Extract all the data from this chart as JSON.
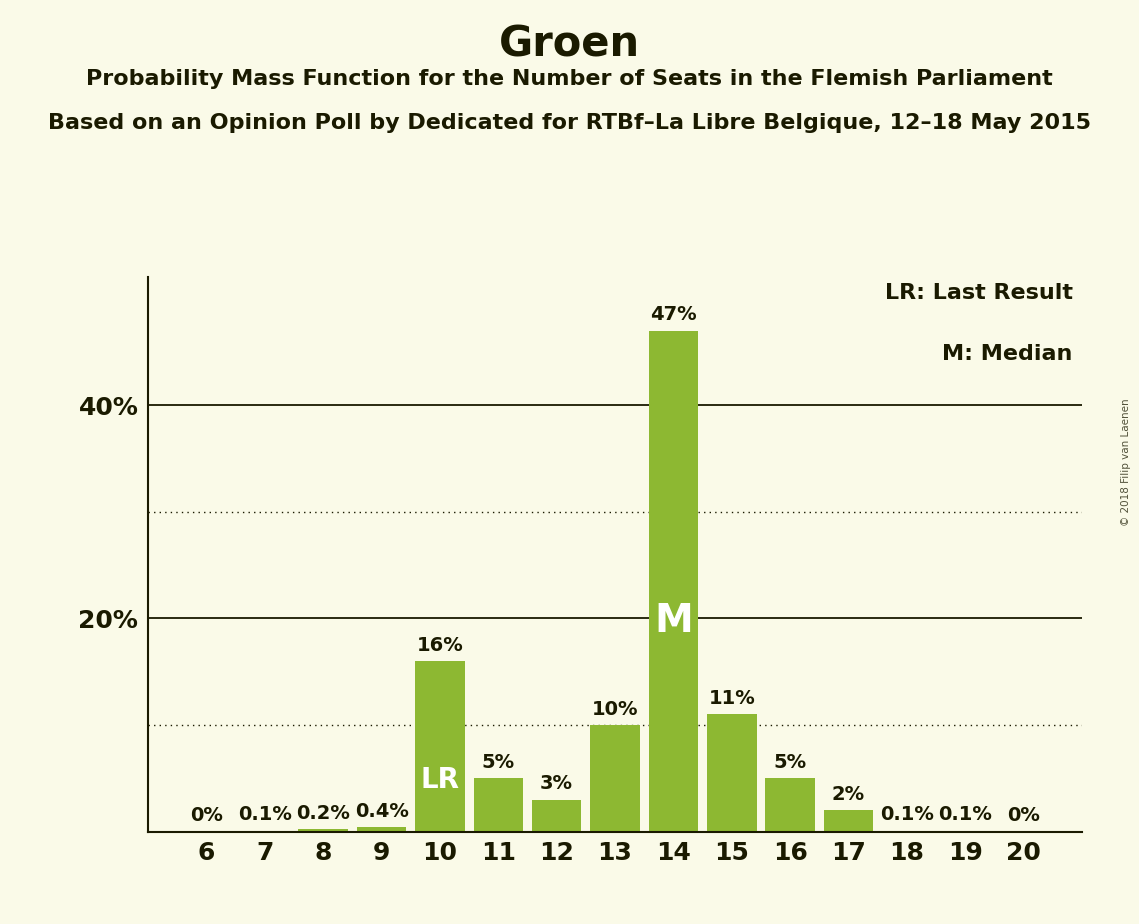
{
  "title": "Groen",
  "subtitle1": "Probability Mass Function for the Number of Seats in the Flemish Parliament",
  "subtitle2": "Based on an Opinion Poll by Dedicated for RTBf–La Libre Belgique, 12–18 May 2015",
  "watermark": "© 2018 Filip van Laenen",
  "seats": [
    6,
    7,
    8,
    9,
    10,
    11,
    12,
    13,
    14,
    15,
    16,
    17,
    18,
    19,
    20
  ],
  "probabilities": [
    0.0,
    0.1,
    0.2,
    0.4,
    16.0,
    5.0,
    3.0,
    10.0,
    47.0,
    11.0,
    5.0,
    2.0,
    0.1,
    0.1,
    0.0
  ],
  "bar_color": "#8DB832",
  "background_color": "#FAFAE8",
  "text_color": "#1a1a00",
  "lr_seat": 10,
  "median_seat": 14,
  "lr_label": "LR",
  "median_label": "M",
  "legend_lr": "LR: Last Result",
  "legend_m": "M: Median",
  "ylim": [
    0,
    52
  ],
  "yticks_solid": [
    20,
    40
  ],
  "yticks_dotted": [
    10,
    30
  ],
  "ytick_labels_positions": [
    20,
    40
  ],
  "ytick_labels_values": [
    "20%",
    "40%"
  ],
  "title_fontsize": 30,
  "subtitle_fontsize": 16,
  "bar_label_fontsize": 14,
  "ytick_fontsize": 18,
  "xtick_fontsize": 18,
  "inbar_lr_fontsize": 20,
  "inbar_m_fontsize": 28,
  "legend_fontsize": 16
}
